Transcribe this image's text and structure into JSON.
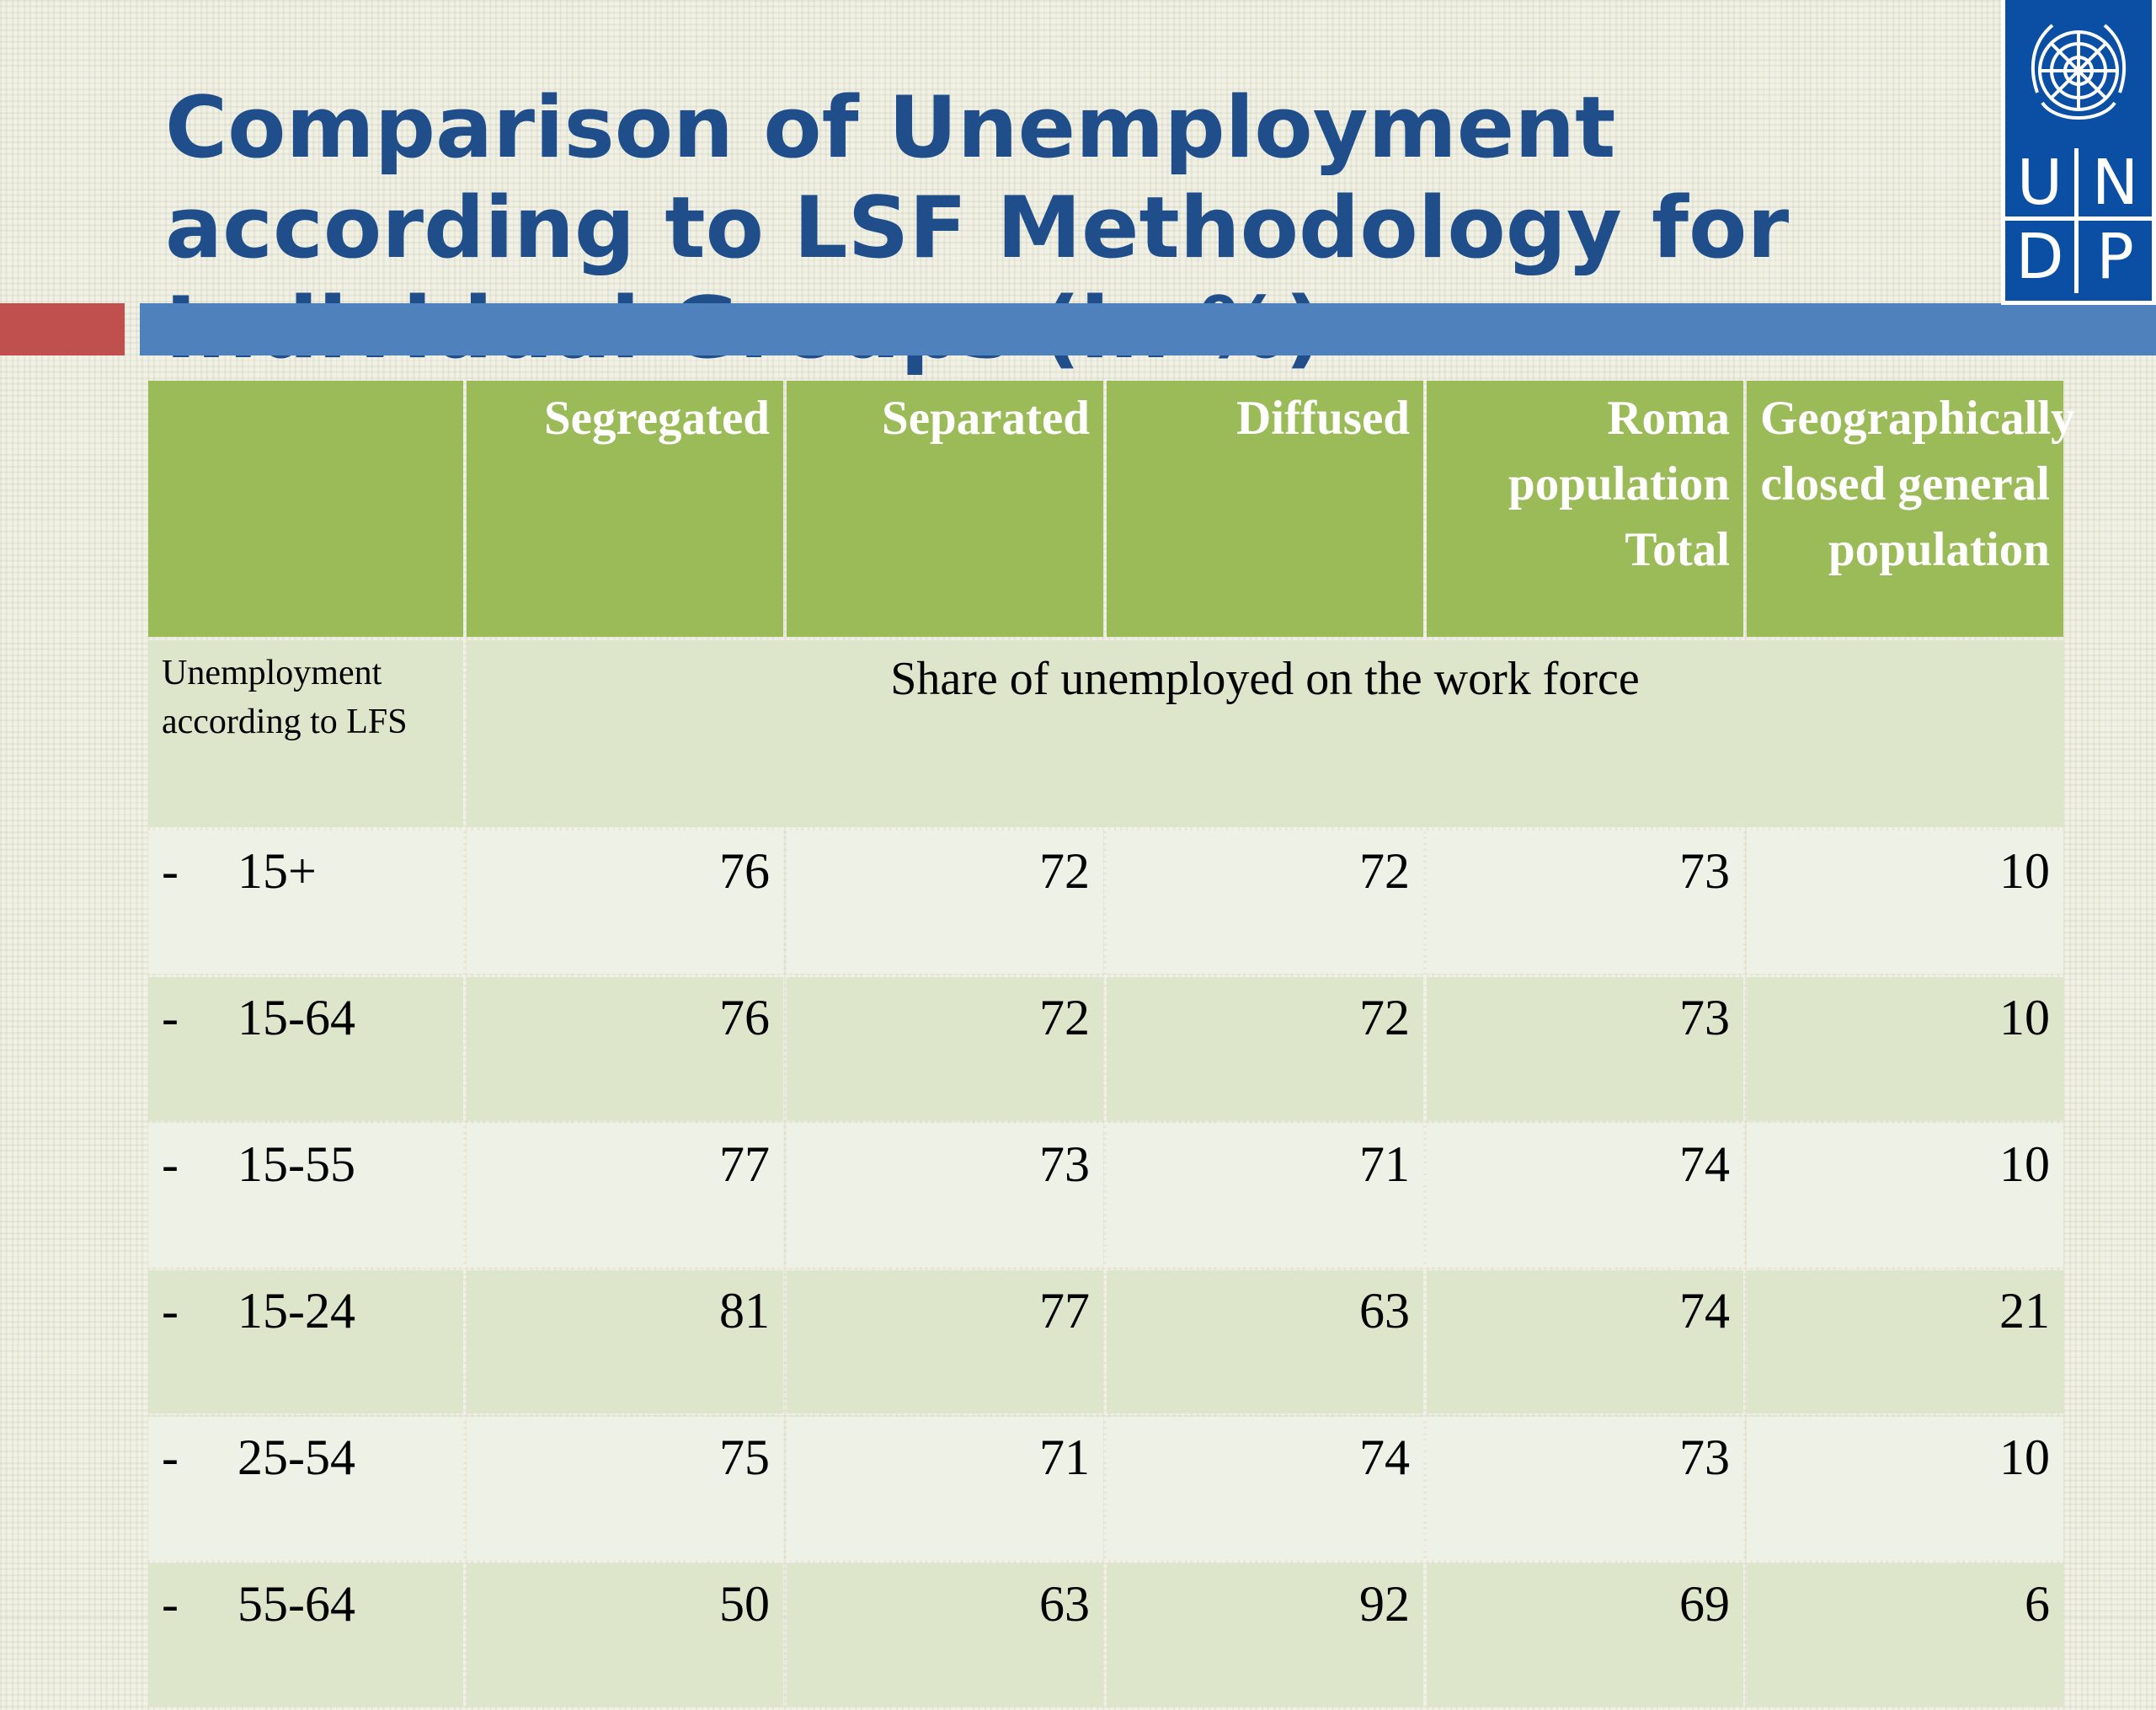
{
  "slide": {
    "title": "Comparison of Unemployment according to LSF Methodology for Individual Groups (in %)"
  },
  "logo": {
    "letters": [
      "U",
      "N",
      "D",
      "P"
    ],
    "name": "un-emblem-icon",
    "color": "#0b4fa5"
  },
  "table": {
    "headers": [
      "",
      "Segregated",
      "Separated",
      "Diffused",
      "Roma population Total",
      "Geographically closed general population"
    ],
    "subheader": {
      "label": "Unemployment according to LFS",
      "span_text": "Share of unemployed on the work force"
    },
    "rows": [
      {
        "dash": "-",
        "label": "15+",
        "values": [
          "76",
          "72",
          "72",
          "73",
          "10"
        ]
      },
      {
        "dash": "-",
        "label": "15-64",
        "values": [
          "76",
          "72",
          "72",
          "73",
          "10"
        ]
      },
      {
        "dash": "-",
        "label": "15-55",
        "values": [
          "77",
          "73",
          "71",
          "74",
          "10"
        ]
      },
      {
        "dash": "-",
        "label": "15-24",
        "values": [
          "81",
          "77",
          "63",
          "74",
          "21"
        ]
      },
      {
        "dash": "-",
        "label": "25-54",
        "values": [
          "75",
          "71",
          "74",
          "73",
          "10"
        ]
      },
      {
        "dash": "-",
        "label": "55-64",
        "values": [
          "50",
          "63",
          "92",
          "69",
          "6"
        ]
      }
    ]
  },
  "colors": {
    "title": "#1f4e8a",
    "header_green": "#9bbb59",
    "row_light": "#eef1e6",
    "row_dark": "#dde6ca",
    "accent_red": "#c0504d",
    "title_bar_blue": "#4f81bd"
  }
}
